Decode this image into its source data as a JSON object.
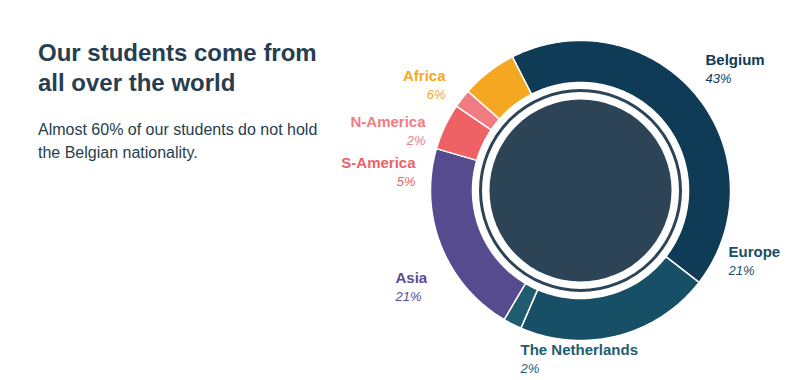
{
  "chart_data": {
    "type": "donut",
    "title": "Our students come from all over the world",
    "subtitle": "Almost 60% of our students do not hold the Belgian nationality.",
    "categories": [
      "Belgium",
      "Europe",
      "The Netherlands",
      "Asia",
      "S-America",
      "N-America",
      "Africa"
    ],
    "values": [
      43,
      21,
      2,
      21,
      5,
      2,
      6
    ],
    "value_labels": [
      "43%",
      "21%",
      "2%",
      "21%",
      "5%",
      "2%",
      "6%"
    ],
    "colors": [
      "#0f3b57",
      "#174f67",
      "#1f5c70",
      "#574b8f",
      "#ee6266",
      "#f07c82",
      "#f6a722"
    ],
    "data_labels": true
  }
}
